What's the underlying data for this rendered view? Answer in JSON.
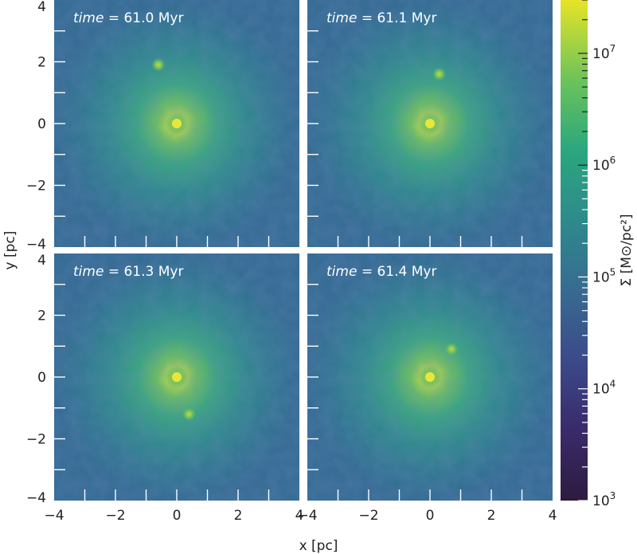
{
  "chart_data": {
    "type": "heatmap",
    "xlabel": "x [pc]",
    "ylabel": "y [pc]",
    "xlim": [
      -4,
      4
    ],
    "ylim": [
      -4,
      4
    ],
    "x_ticks": [
      "−4",
      "−2",
      "0",
      "2",
      "4"
    ],
    "y_ticks": [
      "4",
      "2",
      "0",
      "−2",
      "−4"
    ],
    "colorbar": {
      "label": "Σ [M⊙/pc²]",
      "scale": "log",
      "range": [
        1000,
        30000000
      ],
      "ticks": [
        {
          "label": "10³",
          "base": "10",
          "exp": "3",
          "value": 1000
        },
        {
          "label": "10⁴",
          "base": "10",
          "exp": "4",
          "value": 10000
        },
        {
          "label": "10⁵",
          "base": "10",
          "exp": "5",
          "value": 100000
        },
        {
          "label": "10⁶",
          "base": "10",
          "exp": "6",
          "value": 1000000
        },
        {
          "label": "10⁷",
          "base": "10",
          "exp": "7",
          "value": 10000000
        }
      ],
      "colormap": "viridis"
    },
    "panels": [
      {
        "time_label": "time",
        "time_value": "= 61.0 Myr",
        "clump": {
          "x": -0.6,
          "y": 1.9
        }
      },
      {
        "time_label": "time",
        "time_value": "= 61.1 Myr",
        "clump": {
          "x": 0.3,
          "y": 1.6
        }
      },
      {
        "time_label": "time",
        "time_value": "= 61.3 Myr",
        "clump": {
          "x": 0.4,
          "y": -1.2
        }
      },
      {
        "time_label": "time",
        "time_value": "= 61.4 Myr",
        "clump": {
          "x": 0.7,
          "y": 0.9
        }
      }
    ]
  }
}
